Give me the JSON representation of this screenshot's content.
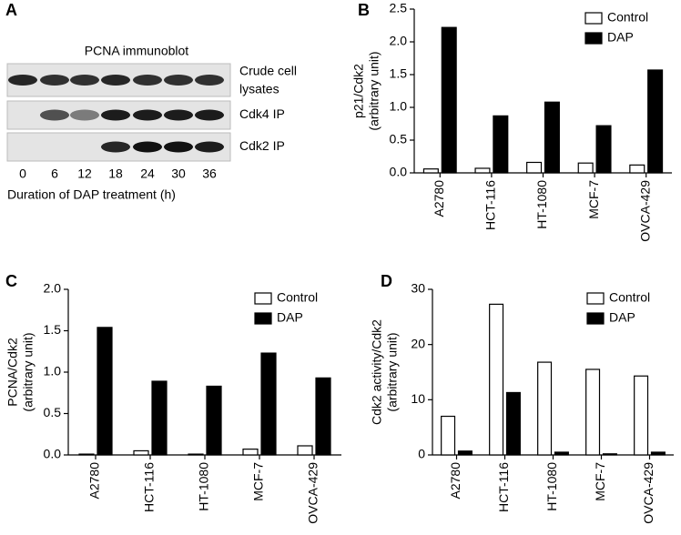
{
  "blot": {
    "panel": "A",
    "title": "PCNA immunoblot",
    "rows": [
      [
        "Crude cell",
        "lysates"
      ],
      [
        "Cdk4 IP"
      ],
      [
        "Cdk2 IP"
      ]
    ],
    "lanes": [
      0,
      6,
      12,
      18,
      24,
      30,
      36
    ],
    "xlabel": "Duration of DAP treatment (h)"
  },
  "chart_data": [
    {
      "type": "bar",
      "panel": "B",
      "ylabel": [
        "p21/Cdk2",
        "(arbitrary unit)"
      ],
      "categories": [
        "A2780",
        "HCT-116",
        "HT-1080",
        "MCF-7",
        "OVCA-429"
      ],
      "series": [
        {
          "name": "Control",
          "color": "#ffffff",
          "values": [
            0.06,
            0.07,
            0.16,
            0.15,
            0.12
          ]
        },
        {
          "name": "DAP",
          "color": "#000000",
          "values": [
            2.22,
            0.87,
            1.08,
            0.72,
            1.57
          ]
        }
      ],
      "ylim": [
        0,
        2.5
      ],
      "yticks": [
        {
          "value": 0,
          "label": "0.0"
        },
        {
          "value": 0.5,
          "label": "0.5"
        },
        {
          "value": 1,
          "label": "1.0"
        },
        {
          "value": 1.5,
          "label": "1.5"
        },
        {
          "value": 2,
          "label": "2.0"
        },
        {
          "value": 2.5,
          "label": "2.5"
        }
      ],
      "legend": "upper right"
    },
    {
      "type": "bar",
      "panel": "C",
      "ylabel": [
        "PCNA/Cdk2",
        "(arbitrary unit)"
      ],
      "categories": [
        "A2780",
        "HCT-116",
        "HT-1080",
        "MCF-7",
        "OVCA-429"
      ],
      "series": [
        {
          "name": "Control",
          "color": "#ffffff",
          "values": [
            0.01,
            0.05,
            0.01,
            0.07,
            0.11
          ]
        },
        {
          "name": "DAP",
          "color": "#000000",
          "values": [
            1.54,
            0.89,
            0.83,
            1.23,
            0.93
          ]
        }
      ],
      "ylim": [
        0,
        2
      ],
      "yticks": [
        {
          "value": 0,
          "label": "0.0"
        },
        {
          "value": 0.5,
          "label": "0.5"
        },
        {
          "value": 1,
          "label": "1.0"
        },
        {
          "value": 1.5,
          "label": "1.5"
        },
        {
          "value": 2,
          "label": "2.0"
        }
      ],
      "legend": "upper right"
    },
    {
      "type": "bar",
      "panel": "D",
      "ylabel": [
        "Cdk2 activity/Cdk2",
        "(arbitrary unit)"
      ],
      "categories": [
        "A2780",
        "HCT-116",
        "HT-1080",
        "MCF-7",
        "OVCA-429"
      ],
      "series": [
        {
          "name": "Control",
          "color": "#ffffff",
          "values": [
            7,
            27.3,
            16.8,
            15.5,
            14.3
          ]
        },
        {
          "name": "DAP",
          "color": "#000000",
          "values": [
            0.7,
            11.3,
            0.5,
            0.2,
            0.5
          ]
        }
      ],
      "ylim": [
        0,
        30
      ],
      "yticks": [
        0,
        10,
        20,
        30
      ],
      "legend": "upper right"
    }
  ]
}
